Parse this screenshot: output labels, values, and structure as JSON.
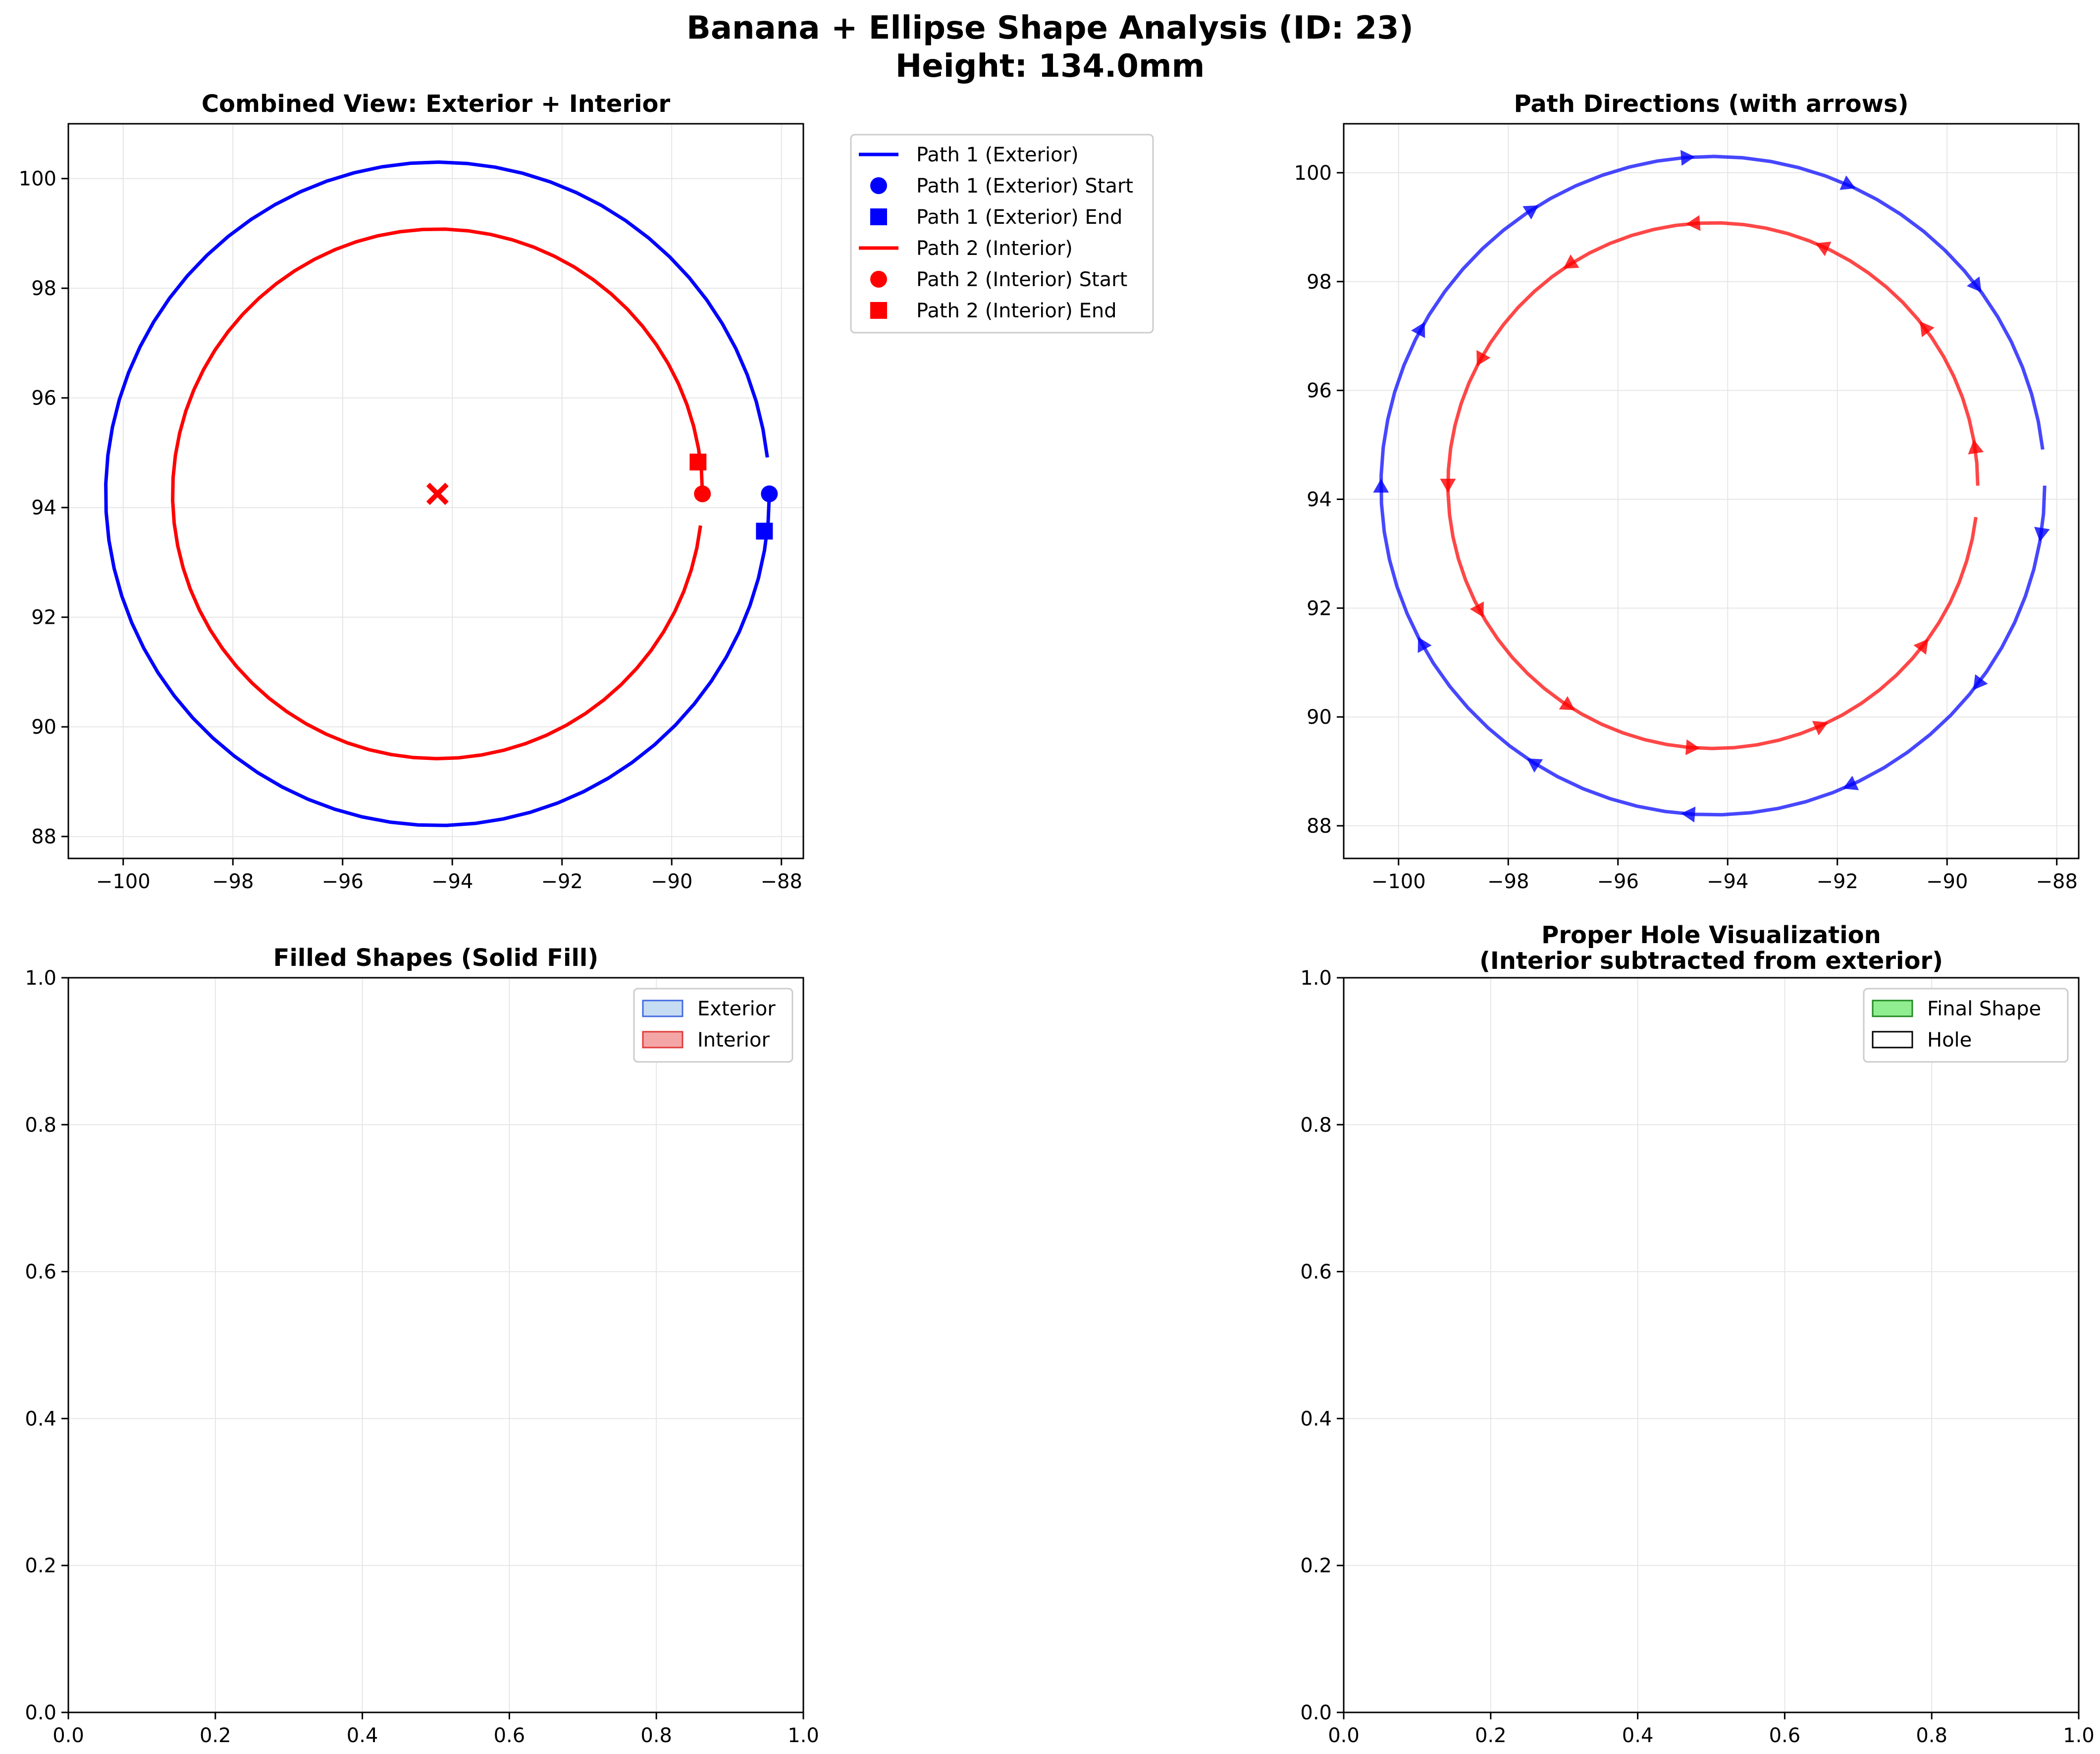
{
  "figure": {
    "title_line1": "Banana + Ellipse Shape Analysis (ID: 23)",
    "title_line2": "Height: 134.0mm"
  },
  "chart_data": [
    {
      "id": "combined",
      "type": "line",
      "title": "Combined View: Exterior + Interior",
      "xlim": [
        -101.0,
        -87.6
      ],
      "ylim": [
        87.6,
        101.0
      ],
      "xticks": [
        -100,
        -98,
        -96,
        -94,
        -92,
        -90,
        -88
      ],
      "yticks": [
        88,
        90,
        92,
        94,
        96,
        98,
        100
      ],
      "grid": true,
      "legend_position": "outside upper right",
      "series": [
        {
          "name": "Path 1 (Exterior)",
          "kind": "open_circle_cw",
          "center": [
            -94.27,
            94.25
          ],
          "radius": 6.05,
          "start": [
            -88.22,
            94.25
          ],
          "end": [
            -88.31,
            93.57
          ],
          "color": "#0000ff"
        },
        {
          "name": "Path 2 (Interior)",
          "kind": "open_circle_ccw",
          "center": [
            -94.27,
            94.25
          ],
          "radius": 4.83,
          "start": [
            -89.44,
            94.25
          ],
          "end": [
            -89.52,
            94.83
          ],
          "color": "#ff0000"
        }
      ],
      "center_marker": {
        "x": -94.27,
        "y": 94.25,
        "marker": "x",
        "color": "#ff0000"
      },
      "legend": [
        {
          "label": "Path 1 (Exterior)",
          "kind": "line",
          "color": "#0000ff"
        },
        {
          "label": "Path 1 (Exterior) Start",
          "kind": "circle",
          "color": "#0000ff"
        },
        {
          "label": "Path 1 (Exterior) End",
          "kind": "square",
          "color": "#0000ff"
        },
        {
          "label": "Path 2 (Interior)",
          "kind": "line",
          "color": "#ff0000"
        },
        {
          "label": "Path 2 (Interior) Start",
          "kind": "circle",
          "color": "#ff0000"
        },
        {
          "label": "Path 2 (Interior) End",
          "kind": "square",
          "color": "#ff0000"
        }
      ]
    },
    {
      "id": "directions",
      "type": "line",
      "title": "Path Directions (with arrows)",
      "xlim": [
        -101.0,
        -87.6
      ],
      "ylim": [
        87.4,
        100.9
      ],
      "xticks": [
        -100,
        -98,
        -96,
        -94,
        -92,
        -90,
        -88
      ],
      "yticks": [
        88,
        90,
        92,
        94,
        96,
        98,
        100
      ],
      "grid": true,
      "series": [
        {
          "name": "Path 1 (Exterior)",
          "kind": "open_circle_cw",
          "center": [
            -94.27,
            94.25
          ],
          "radius": 6.05,
          "color": "#0000ff",
          "arrows": 12
        },
        {
          "name": "Path 2 (Interior)",
          "kind": "open_circle_ccw",
          "center": [
            -94.27,
            94.25
          ],
          "radius": 4.83,
          "color": "#ff0000",
          "arrows": 12
        }
      ]
    },
    {
      "id": "filled",
      "type": "area",
      "title": "Filled Shapes (Solid Fill)",
      "xlim": [
        0.0,
        1.0
      ],
      "ylim": [
        0.0,
        1.0
      ],
      "xticks": [
        0.0,
        0.2,
        0.4,
        0.6,
        0.8,
        1.0
      ],
      "yticks": [
        0.0,
        0.2,
        0.4,
        0.6,
        0.8,
        1.0
      ],
      "grid": true,
      "legend_position": "upper right",
      "legend": [
        {
          "label": "Exterior",
          "face": "#c6dcf3",
          "edge": "#4169e1"
        },
        {
          "label": "Interior",
          "face": "#f4a6a6",
          "edge": "#e03c3c"
        }
      ]
    },
    {
      "id": "hole",
      "type": "area",
      "title": "Proper Hole Visualization",
      "title_line2": "(Interior subtracted from exterior)",
      "xlim": [
        0.0,
        1.0
      ],
      "ylim": [
        0.0,
        1.0
      ],
      "xticks": [
        0.0,
        0.2,
        0.4,
        0.6,
        0.8,
        1.0
      ],
      "yticks": [
        0.0,
        0.2,
        0.4,
        0.6,
        0.8,
        1.0
      ],
      "grid": true,
      "legend_position": "upper right",
      "legend": [
        {
          "label": "Final Shape",
          "face": "#90ee90",
          "edge": "#228b22"
        },
        {
          "label": "Hole",
          "face": "#ffffff",
          "edge": "#000000"
        }
      ]
    }
  ]
}
